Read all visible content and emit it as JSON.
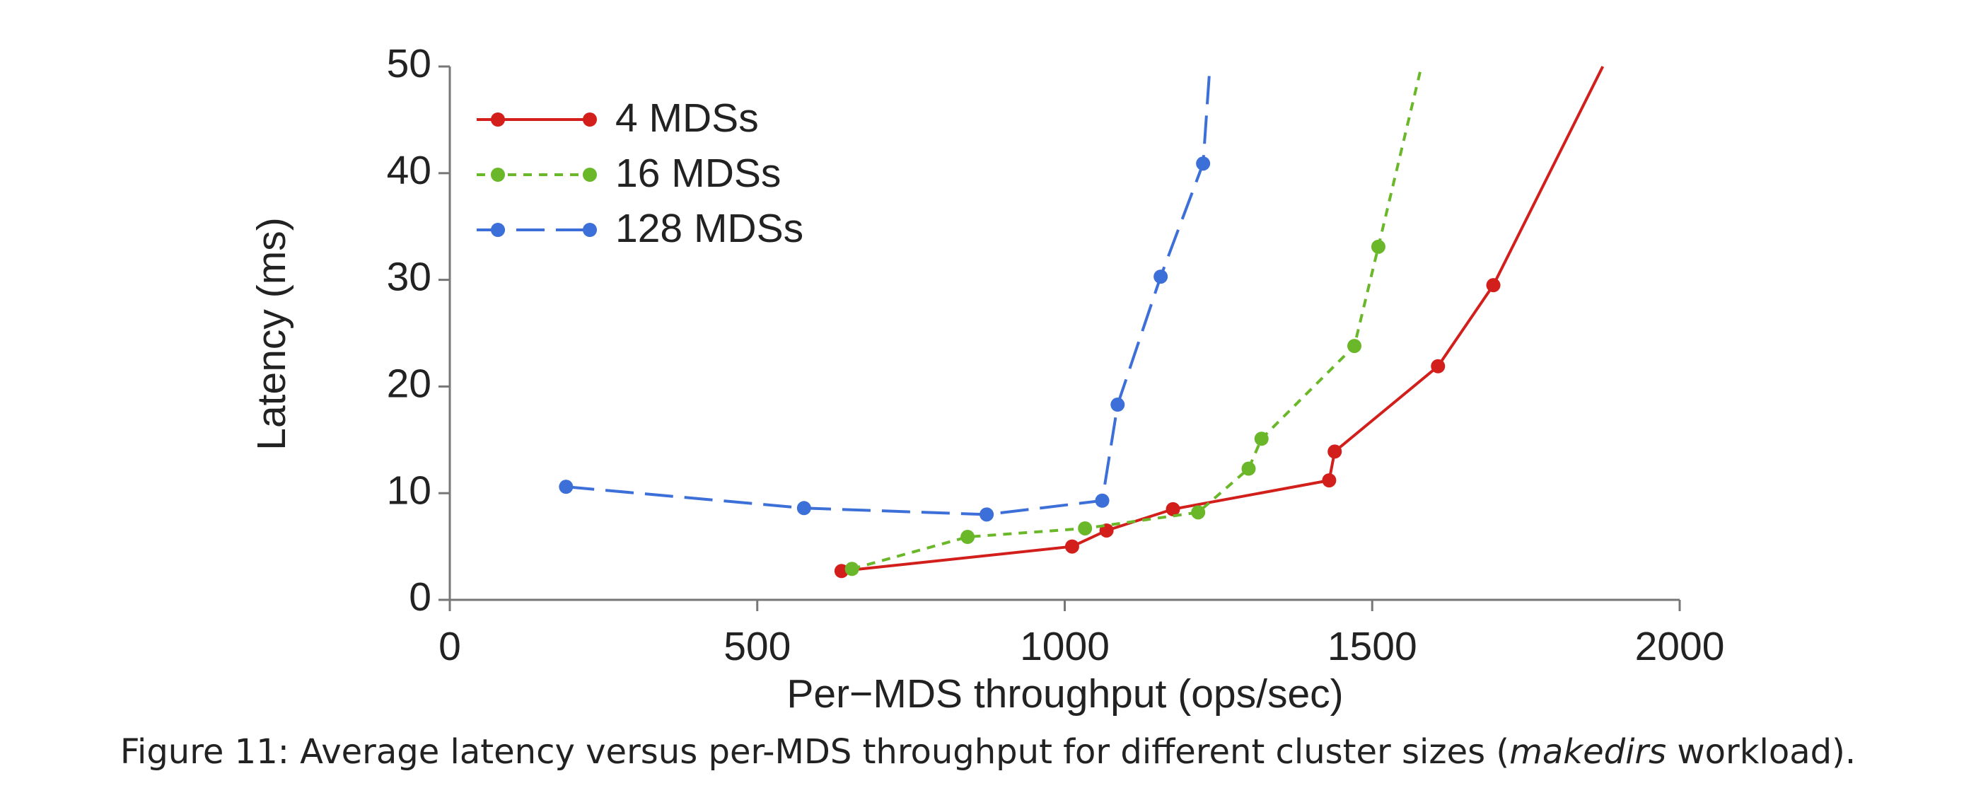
{
  "chart_data": {
    "type": "line",
    "x_label": "Per−MDS throughput (ops/sec)",
    "y_label": "Latency (ms)",
    "caption": [
      "Figure 11: Average latency versus per-MDS throughput for different cluster sizes (",
      "makedirs",
      " workload)."
    ],
    "xlim": [
      0,
      2000
    ],
    "xticks": [
      0,
      500,
      1000,
      1500,
      2000
    ],
    "ylim": [
      0,
      50
    ],
    "yticks": [
      0,
      10,
      20,
      30,
      40,
      50
    ],
    "legend": "upper left",
    "series": [
      {
        "name": "4 MDSs",
        "color": "#d21f1b",
        "line_style": "solid",
        "x": [
          637,
          1012,
          1068,
          1176,
          1430,
          1439,
          1607,
          1697,
          1875
        ],
        "values": [
          2.7,
          5.0,
          6.5,
          8.5,
          11.2,
          13.9,
          21.9,
          29.5,
          50
        ]
      },
      {
        "name": "16 MDSs",
        "color": "#6ab82a",
        "line_style": "dotted",
        "x": [
          654,
          842,
          1033,
          1217,
          1299,
          1320,
          1471,
          1510,
          1580
        ],
        "values": [
          2.9,
          5.9,
          6.7,
          8.2,
          12.3,
          15.1,
          23.8,
          33.1,
          50
        ]
      },
      {
        "name": "128 MDSs",
        "color": "#3c6fd8",
        "line_style": "dashed",
        "x": [
          189,
          576,
          873,
          1061,
          1086,
          1156,
          1225,
          1236
        ],
        "values": [
          10.6,
          8.6,
          8.0,
          9.3,
          18.3,
          30.3,
          40.9,
          50
        ]
      }
    ]
  }
}
